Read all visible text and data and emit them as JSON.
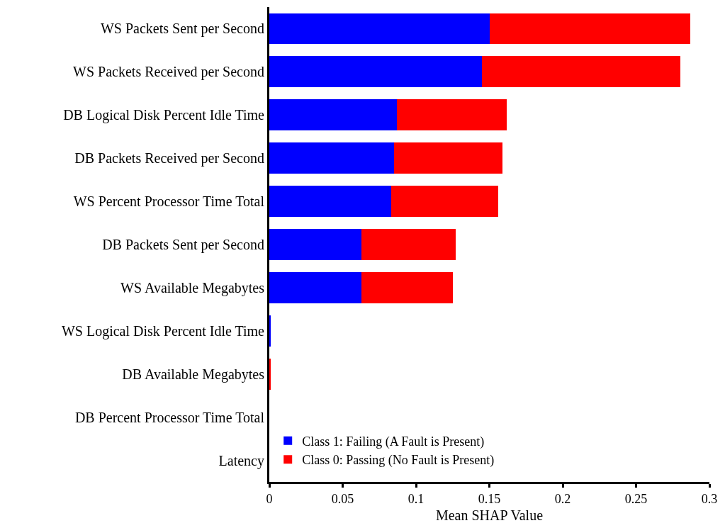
{
  "chart_data": {
    "type": "bar",
    "orientation": "horizontal",
    "stacked": true,
    "xlabel": "Mean SHAP Value",
    "categories": [
      "WS Packets Sent per Second",
      "WS Packets Received per Second",
      "DB Logical Disk Percent Idle Time",
      "DB Packets Received per Second",
      "WS Percent Processor Time Total",
      "DB Packets Sent per Second",
      "WS Available Megabytes",
      "WS Logical Disk Percent Idle Time",
      "DB Available Megabytes",
      "DB Percent Processor Time Total",
      "Latency"
    ],
    "series": [
      {
        "name": "Class 1: Failing (A Fault is Present)",
        "color": "#0000ff",
        "values": [
          0.15,
          0.145,
          0.087,
          0.085,
          0.083,
          0.063,
          0.063,
          0.001,
          0,
          0,
          0
        ]
      },
      {
        "name": "Class 0: Passing (No Fault is Present)",
        "color": "#ff0000",
        "values": [
          0.137,
          0.135,
          0.075,
          0.074,
          0.073,
          0.064,
          0.062,
          0,
          0.001,
          0,
          0
        ]
      }
    ],
    "xlim": [
      0,
      0.3
    ],
    "xticks": [
      0,
      0.05,
      0.1,
      0.15,
      0.2,
      0.25,
      0.3
    ],
    "grid": false,
    "legend": "bottom left"
  }
}
